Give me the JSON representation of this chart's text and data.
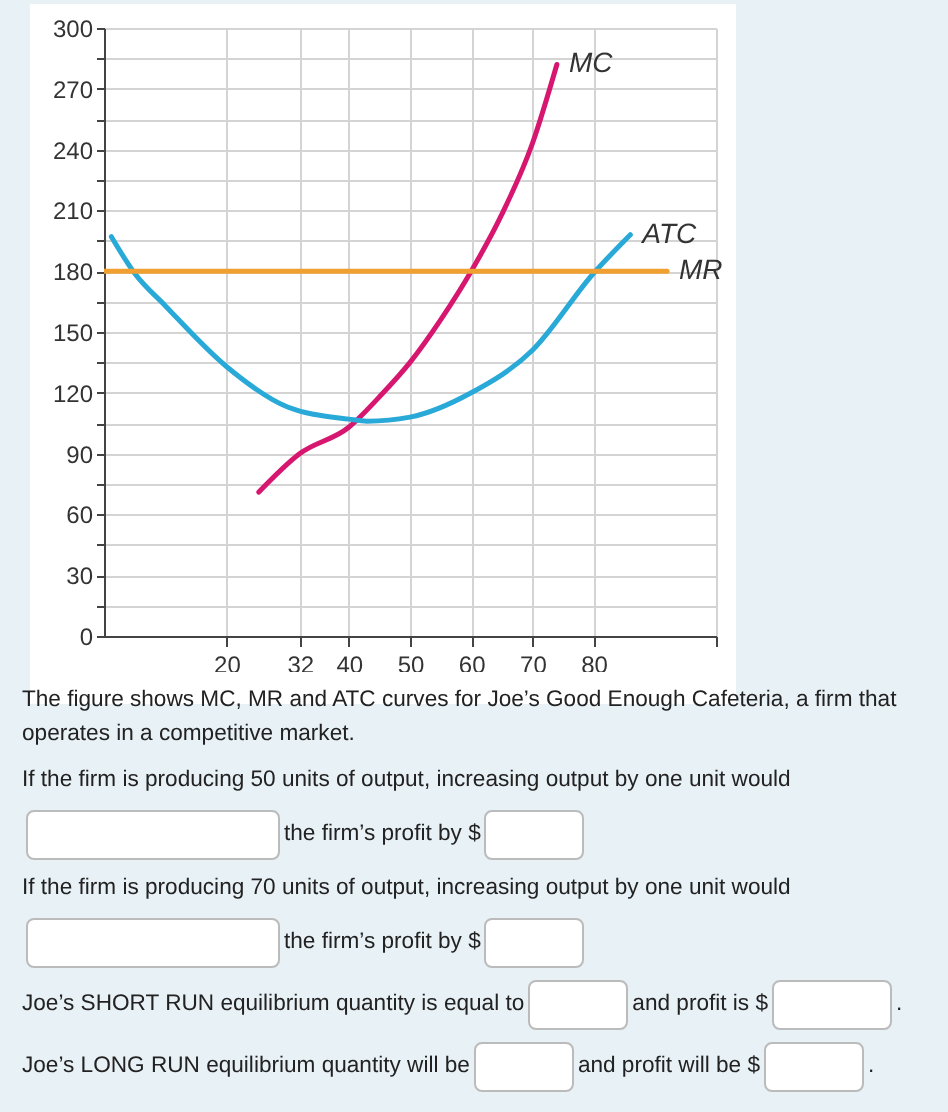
{
  "chart_data": {
    "type": "line",
    "xlim": [
      0,
      100
    ],
    "xticks": [
      20,
      32,
      40,
      50,
      60,
      70,
      80,
      {
        "value": 100,
        "label": null
      }
    ],
    "ylim": [
      0,
      300
    ],
    "yticks": [
      0,
      {
        "value": 15,
        "label": null
      },
      30,
      {
        "value": 45,
        "label": null
      },
      60,
      {
        "value": 75,
        "label": null
      },
      90,
      {
        "value": 105,
        "label": null
      },
      120,
      {
        "value": 135,
        "label": null
      },
      150,
      {
        "value": 165,
        "label": null
      },
      180,
      {
        "value": 195,
        "label": null
      },
      210,
      {
        "value": 225,
        "label": null
      },
      240,
      {
        "value": 255,
        "label": null
      },
      270,
      {
        "value": 285,
        "label": null
      },
      300
    ],
    "grid": true,
    "marker": "none",
    "line_style": "solid",
    "series": [
      {
        "name": "MC",
        "color": "#d6166f",
        "x": [
          25.3,
          32,
          40,
          45,
          50,
          55,
          60,
          65,
          70,
          74
        ],
        "values": [
          71,
          90,
          103,
          118,
          135,
          156,
          180,
          208,
          243,
          282
        ]
      },
      {
        "name": "ATC",
        "color": "#29a9d8",
        "x": [
          1.2,
          5,
          10,
          20,
          30,
          40,
          43,
          50,
          60,
          70,
          80,
          86
        ],
        "values": [
          197,
          179,
          163,
          133,
          113,
          107,
          106,
          108,
          120,
          141,
          179,
          198
        ]
      },
      {
        "name": "MR",
        "color": "#f0a030",
        "x": [
          0,
          92
        ],
        "values": [
          180,
          180
        ]
      }
    ],
    "annotations": [
      "The figure shows MC, MR and ATC curves for Joe’s Good Enough Cafeteria, a firm that operates in a competitive market.",
      "If the firm is producing 50 units of output, increasing output by one unit would",
      "the firm’s profit by $",
      "If the firm is producing 70 units of output, increasing output by one unit would",
      "the firm’s profit by $",
      "Joe’s SHORT RUN equilibrium quantity is equal to",
      "and profit is $",
      ".",
      "Joe’s LONG RUN equilibrium quantity will be",
      "and profit will be $",
      "."
    ]
  }
}
